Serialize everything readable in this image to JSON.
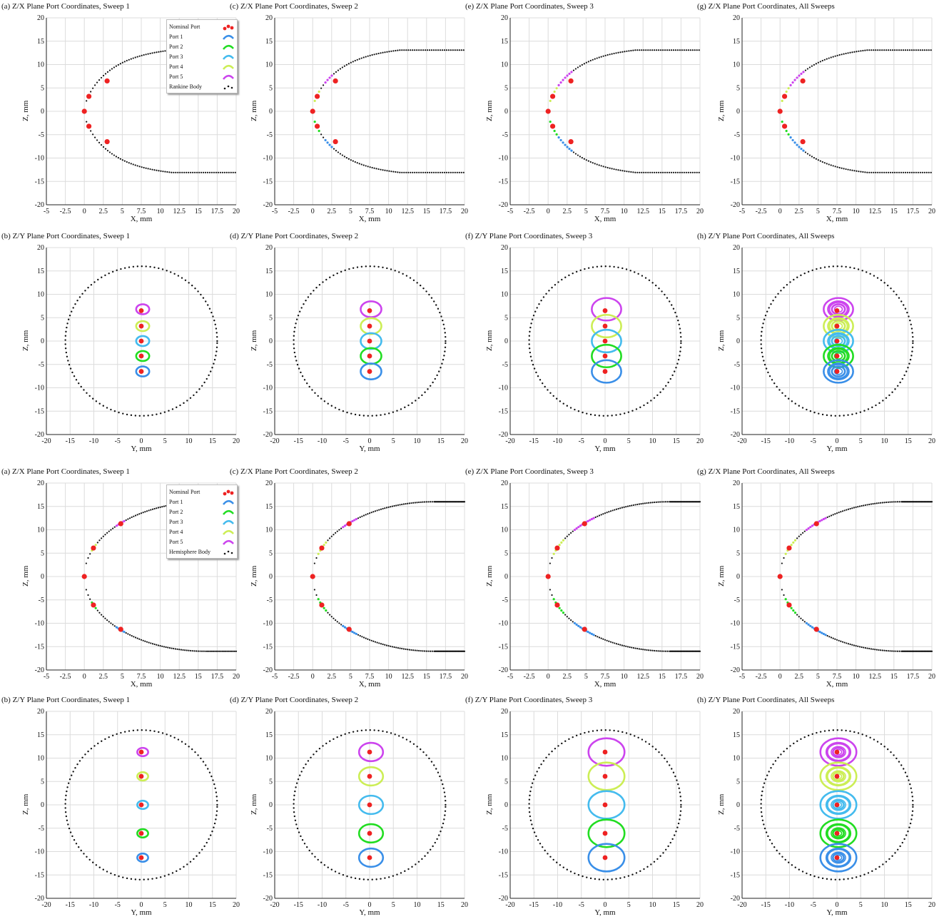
{
  "colors": {
    "nominal": "#ee2222",
    "port1": "#3a8fe8",
    "port2": "#22dd22",
    "port3": "#44bbee",
    "port4": "#ccee55",
    "port5": "#cc44ee",
    "body": "#111111"
  },
  "chart_data": [
    {
      "id": "zx-rankine-s1",
      "type": "scatter",
      "view": "zx",
      "body": "rankine",
      "sweep": 1,
      "title": "(a) Z/X Plane Port Coordinates, Sweep 1",
      "xlabel": "X, mm",
      "ylabel": "Z, mm",
      "xlim": [
        -5,
        20
      ],
      "ylim": [
        -20,
        20
      ],
      "grid": true,
      "show_legend": true,
      "legend": {
        "position": "top-right",
        "entries": [
          "Nominal Port",
          "Port 1",
          "Port 2",
          "Port 3",
          "Port 4",
          "Port 5",
          "Rankine Body"
        ]
      },
      "nominal_ports": [
        [
          0,
          0
        ],
        [
          0.6,
          3.2
        ],
        [
          0.6,
          -3.2
        ],
        [
          3.0,
          6.5
        ],
        [
          3.0,
          -6.5
        ]
      ]
    },
    {
      "id": "zx-rankine-s2",
      "type": "scatter",
      "view": "zx",
      "body": "rankine",
      "sweep": 2,
      "title": "(c) Z/X Plane Port Coordinates, Sweep 2",
      "xlabel": "X, mm",
      "ylabel": "Z, mm",
      "xlim": [
        -5,
        20
      ],
      "ylim": [
        -20,
        20
      ],
      "grid": true,
      "nominal_ports": [
        [
          0,
          0
        ],
        [
          0.6,
          3.2
        ],
        [
          0.6,
          -3.2
        ],
        [
          3.0,
          6.5
        ],
        [
          3.0,
          -6.5
        ]
      ]
    },
    {
      "id": "zx-rankine-s3",
      "type": "scatter",
      "view": "zx",
      "body": "rankine",
      "sweep": 3,
      "title": "(e) Z/X Plane Port Coordinates, Sweep 3",
      "xlabel": "X, mm",
      "ylabel": "Z, mm",
      "xlim": [
        -5,
        20
      ],
      "ylim": [
        -20,
        20
      ],
      "grid": true,
      "nominal_ports": [
        [
          0,
          0
        ],
        [
          0.6,
          3.2
        ],
        [
          0.6,
          -3.2
        ],
        [
          3.0,
          6.5
        ],
        [
          3.0,
          -6.5
        ]
      ]
    },
    {
      "id": "zx-rankine-all",
      "type": "scatter",
      "view": "zx",
      "body": "rankine",
      "sweep": 4,
      "title": "(g) Z/X Plane Port Coordinates, All Sweeps",
      "xlabel": "X, mm",
      "ylabel": "Z, mm",
      "xlim": [
        -5,
        20
      ],
      "ylim": [
        -20,
        20
      ],
      "grid": true,
      "nominal_ports": [
        [
          0,
          0
        ],
        [
          0.6,
          3.2
        ],
        [
          0.6,
          -3.2
        ],
        [
          3.0,
          6.5
        ],
        [
          3.0,
          -6.5
        ]
      ]
    },
    {
      "id": "zy-rankine-s1",
      "type": "scatter",
      "view": "zy",
      "body": "rankine",
      "sweep": 1,
      "title": "(b) Z/Y Plane Port Coordinates, Sweep 1",
      "xlabel": "Y, mm",
      "ylabel": "Z, mm",
      "xlim": [
        -20,
        20
      ],
      "ylim": [
        -20,
        20
      ],
      "grid": true,
      "body_radius": 16,
      "nominal_ports": [
        [
          0,
          6.5
        ],
        [
          0,
          3.2
        ],
        [
          0,
          0
        ],
        [
          0,
          -3.2
        ],
        [
          0,
          -6.5
        ]
      ],
      "ring_radius": 1.2
    },
    {
      "id": "zy-rankine-s2",
      "type": "scatter",
      "view": "zy",
      "body": "rankine",
      "sweep": 2,
      "title": "(d) Z/Y Plane Port Coordinates, Sweep 2",
      "xlabel": "Y, mm",
      "ylabel": "Z, mm",
      "xlim": [
        -20,
        20
      ],
      "ylim": [
        -20,
        20
      ],
      "grid": true,
      "body_radius": 16,
      "nominal_ports": [
        [
          0,
          6.5
        ],
        [
          0,
          3.2
        ],
        [
          0,
          0
        ],
        [
          0,
          -3.2
        ],
        [
          0,
          -6.5
        ]
      ],
      "ring_radius": 1.9
    },
    {
      "id": "zy-rankine-s3",
      "type": "scatter",
      "view": "zy",
      "body": "rankine",
      "sweep": 3,
      "title": "(f) Z/Y Plane Port Coordinates, Sweep 3",
      "xlabel": "Y, mm",
      "ylabel": "Z, mm",
      "xlim": [
        -20,
        20
      ],
      "ylim": [
        -20,
        20
      ],
      "grid": true,
      "body_radius": 16,
      "nominal_ports": [
        [
          0,
          6.5
        ],
        [
          0,
          3.2
        ],
        [
          0,
          0
        ],
        [
          0,
          -3.2
        ],
        [
          0,
          -6.5
        ]
      ],
      "ring_radius": 2.7
    },
    {
      "id": "zy-rankine-all",
      "type": "scatter",
      "view": "zy",
      "body": "rankine",
      "sweep": 4,
      "title": "(h) Z/Y Plane Port Coordinates, All Sweeps",
      "xlabel": "Y, mm",
      "ylabel": "Z, mm",
      "xlim": [
        -20,
        20
      ],
      "ylim": [
        -20,
        20
      ],
      "grid": true,
      "body_radius": 16,
      "nominal_ports": [
        [
          0,
          6.5
        ],
        [
          0,
          3.2
        ],
        [
          0,
          0
        ],
        [
          0,
          -3.2
        ],
        [
          0,
          -6.5
        ]
      ],
      "ring_radii": [
        1.2,
        1.9,
        2.7
      ]
    },
    {
      "id": "zx-hemi-s1",
      "type": "scatter",
      "view": "zx",
      "body": "hemisphere",
      "sweep": 1,
      "title": "(a) Z/X Plane Port Coordinates, Sweep 1",
      "xlabel": "X, mm",
      "ylabel": "Z, mm",
      "xlim": [
        -5,
        20
      ],
      "ylim": [
        -20,
        20
      ],
      "grid": true,
      "show_legend": true,
      "legend": {
        "position": "top-right",
        "entries": [
          "Nominal Port",
          "Port 1",
          "Port 2",
          "Port 3",
          "Port 4",
          "Port 5",
          "Hemisphere Body"
        ]
      },
      "nominal_ports": [
        [
          0,
          0
        ],
        [
          1.2,
          6.1
        ],
        [
          1.2,
          -6.1
        ],
        [
          4.8,
          11.3
        ],
        [
          4.8,
          -11.3
        ]
      ]
    },
    {
      "id": "zx-hemi-s2",
      "type": "scatter",
      "view": "zx",
      "body": "hemisphere",
      "sweep": 2,
      "title": "(c) Z/X Plane Port Coordinates, Sweep 2",
      "xlabel": "X, mm",
      "ylabel": "Z, mm",
      "xlim": [
        -5,
        20
      ],
      "ylim": [
        -20,
        20
      ],
      "grid": true,
      "nominal_ports": [
        [
          0,
          0
        ],
        [
          1.2,
          6.1
        ],
        [
          1.2,
          -6.1
        ],
        [
          4.8,
          11.3
        ],
        [
          4.8,
          -11.3
        ]
      ]
    },
    {
      "id": "zx-hemi-s3",
      "type": "scatter",
      "view": "zx",
      "body": "hemisphere",
      "sweep": 3,
      "title": "(e) Z/X Plane Port Coordinates, Sweep 3",
      "xlabel": "X, mm",
      "ylabel": "Z, mm",
      "xlim": [
        -5,
        20
      ],
      "ylim": [
        -20,
        20
      ],
      "grid": true,
      "nominal_ports": [
        [
          0,
          0
        ],
        [
          1.2,
          6.1
        ],
        [
          1.2,
          -6.1
        ],
        [
          4.8,
          11.3
        ],
        [
          4.8,
          -11.3
        ]
      ]
    },
    {
      "id": "zx-hemi-all",
      "type": "scatter",
      "view": "zx",
      "body": "hemisphere",
      "sweep": 4,
      "title": "(g) Z/X Plane Port Coordinates, All Sweeps",
      "xlabel": "X, mm",
      "ylabel": "Z, mm",
      "xlim": [
        -5,
        20
      ],
      "ylim": [
        -20,
        20
      ],
      "grid": true,
      "nominal_ports": [
        [
          0,
          0
        ],
        [
          1.2,
          6.1
        ],
        [
          1.2,
          -6.1
        ],
        [
          4.8,
          11.3
        ],
        [
          4.8,
          -11.3
        ]
      ]
    },
    {
      "id": "zy-hemi-s1",
      "type": "scatter",
      "view": "zy",
      "body": "hemisphere",
      "sweep": 1,
      "title": "(b) Z/Y Plane Port Coordinates, Sweep 1",
      "xlabel": "Y, mm",
      "ylabel": "Z, mm",
      "xlim": [
        -20,
        20
      ],
      "ylim": [
        -20,
        20
      ],
      "grid": true,
      "body_radius": 16,
      "nominal_ports": [
        [
          0,
          11.3
        ],
        [
          0,
          6.1
        ],
        [
          0,
          0
        ],
        [
          0,
          -6.1
        ],
        [
          0,
          -11.3
        ]
      ],
      "ring_radius": 1.0
    },
    {
      "id": "zy-hemi-s2",
      "type": "scatter",
      "view": "zy",
      "body": "hemisphere",
      "sweep": 2,
      "title": "(d) Z/Y Plane Port Coordinates, Sweep 2",
      "xlabel": "Y, mm",
      "ylabel": "Z, mm",
      "xlim": [
        -20,
        20
      ],
      "ylim": [
        -20,
        20
      ],
      "grid": true,
      "body_radius": 16,
      "nominal_ports": [
        [
          0,
          11.3
        ],
        [
          0,
          6.1
        ],
        [
          0,
          0
        ],
        [
          0,
          -6.1
        ],
        [
          0,
          -11.3
        ]
      ],
      "ring_radius": 2.2
    },
    {
      "id": "zy-hemi-s3",
      "type": "scatter",
      "view": "zy",
      "body": "hemisphere",
      "sweep": 3,
      "title": "(f) Z/Y Plane Port Coordinates, Sweep 3",
      "xlabel": "Y, mm",
      "ylabel": "Z, mm",
      "xlim": [
        -20,
        20
      ],
      "ylim": [
        -20,
        20
      ],
      "grid": true,
      "body_radius": 16,
      "nominal_ports": [
        [
          0,
          11.3
        ],
        [
          0,
          6.1
        ],
        [
          0,
          0
        ],
        [
          0,
          -6.1
        ],
        [
          0,
          -11.3
        ]
      ],
      "ring_radius": 3.3
    },
    {
      "id": "zy-hemi-all",
      "type": "scatter",
      "view": "zy",
      "body": "hemisphere",
      "sweep": 4,
      "title": "(h) Z/Y Plane Port Coordinates, All Sweeps",
      "xlabel": "Y, mm",
      "ylabel": "Z, mm",
      "xlim": [
        -20,
        20
      ],
      "ylim": [
        -20,
        20
      ],
      "grid": true,
      "body_radius": 16,
      "nominal_ports": [
        [
          0,
          11.3
        ],
        [
          0,
          6.1
        ],
        [
          0,
          0
        ],
        [
          0,
          -6.1
        ],
        [
          0,
          -11.3
        ]
      ],
      "ring_radii": [
        1.0,
        2.2,
        3.3
      ]
    }
  ]
}
